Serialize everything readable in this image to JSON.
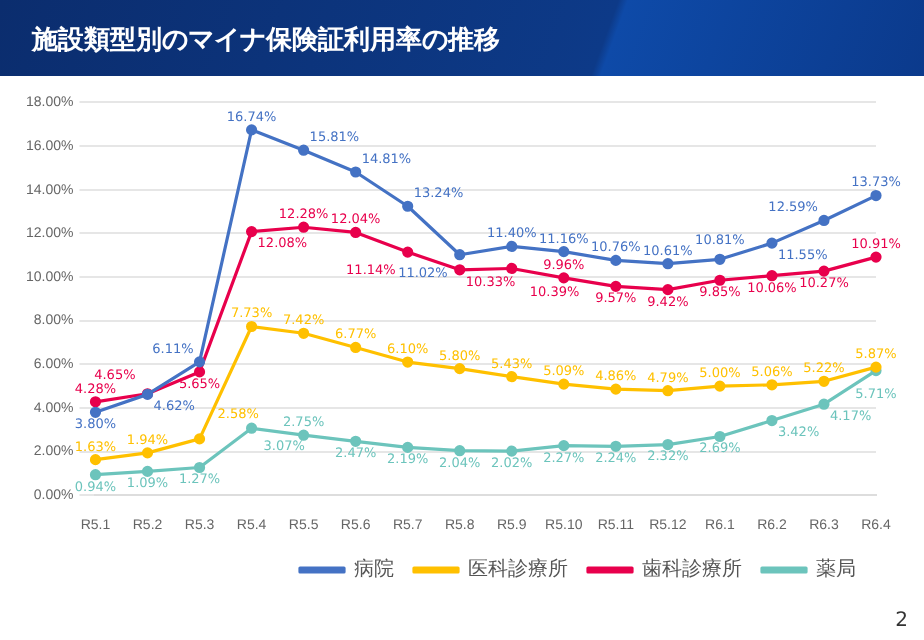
{
  "chart_data": {
    "type": "line",
    "title": "施設類型別のマイナ保険証利用率の推移",
    "categories": [
      "R5.1",
      "R5.2",
      "R5.3",
      "R5.4",
      "R5.5",
      "R5.6",
      "R5.7",
      "R5.8",
      "R5.9",
      "R5.10",
      "R5.11",
      "R5.12",
      "R6.1",
      "R6.2",
      "R6.3",
      "R6.4"
    ],
    "series": [
      {
        "name": "病院",
        "color": "#4472c4",
        "values": [
          3.8,
          4.62,
          6.11,
          16.74,
          15.81,
          14.81,
          13.24,
          11.02,
          11.4,
          11.16,
          10.76,
          10.61,
          10.81,
          11.55,
          12.59,
          13.73
        ],
        "value_labels": [
          "3.80%",
          "4.62%",
          "6.11%",
          "16.74%",
          "15.81%",
          "14.81%",
          "13.24%",
          "11.02%",
          "11.40%",
          "11.16%",
          "10.76%",
          "10.61%",
          "10.81%",
          "11.55%",
          "12.59%",
          "13.73%"
        ]
      },
      {
        "name": "医科診療所",
        "color": "#ffc000",
        "values": [
          1.63,
          1.94,
          2.58,
          7.73,
          7.42,
          6.77,
          6.1,
          5.8,
          5.43,
          5.09,
          4.86,
          4.79,
          5.0,
          5.06,
          5.22,
          5.87
        ],
        "value_labels": [
          "1.63%",
          "1.94%",
          "2.58%",
          "7.73%",
          "7.42%",
          "6.77%",
          "6.10%",
          "5.80%",
          "5.43%",
          "5.09%",
          "4.86%",
          "4.79%",
          "5.00%",
          "5.06%",
          "5.22%",
          "5.87%"
        ]
      },
      {
        "name": "歯科診療所",
        "color": "#e8004c",
        "values": [
          4.28,
          4.65,
          5.65,
          12.08,
          12.28,
          12.04,
          11.14,
          10.33,
          10.39,
          9.96,
          9.57,
          9.42,
          9.85,
          10.06,
          10.27,
          10.91
        ],
        "value_labels": [
          "4.28%",
          "4.65%",
          "5.65%",
          "12.08%",
          "12.28%",
          "12.04%",
          "11.14%",
          "10.33%",
          "10.39%",
          "9.96%",
          "9.57%",
          "9.42%",
          "9.85%",
          "10.06%",
          "10.27%",
          "10.91%"
        ]
      },
      {
        "name": "薬局",
        "color": "#6cc4bc",
        "values": [
          0.94,
          1.09,
          1.27,
          3.07,
          2.75,
          2.47,
          2.19,
          2.04,
          2.02,
          2.27,
          2.24,
          2.32,
          2.69,
          3.42,
          4.17,
          5.71
        ],
        "value_labels": [
          "0.94%",
          "1.09%",
          "1.27%",
          "3.07%",
          "2.75%",
          "2.47%",
          "2.19%",
          "2.04%",
          "2.02%",
          "2.27%",
          "2.24%",
          "2.32%",
          "2.69%",
          "3.42%",
          "4.17%",
          "5.71%"
        ]
      }
    ],
    "ylim": [
      0,
      18
    ],
    "yticks": [
      {
        "value": 0,
        "label": "0.00%"
      },
      {
        "value": 2,
        "label": "2.00%"
      },
      {
        "value": 4,
        "label": "4.00%"
      },
      {
        "value": 6,
        "label": "6.00%"
      },
      {
        "value": 8,
        "label": "8.00%"
      },
      {
        "value": 10,
        "label": "10.00%"
      },
      {
        "value": 12,
        "label": "12.00%"
      },
      {
        "value": 14,
        "label": "14.00%"
      },
      {
        "value": 16,
        "label": "16.00%"
      },
      {
        "value": 18,
        "label": "18.00%"
      }
    ],
    "grid": "y",
    "legend": "bottom",
    "marker": "circle",
    "line_style": "solid",
    "annotations": [
      "2"
    ]
  }
}
